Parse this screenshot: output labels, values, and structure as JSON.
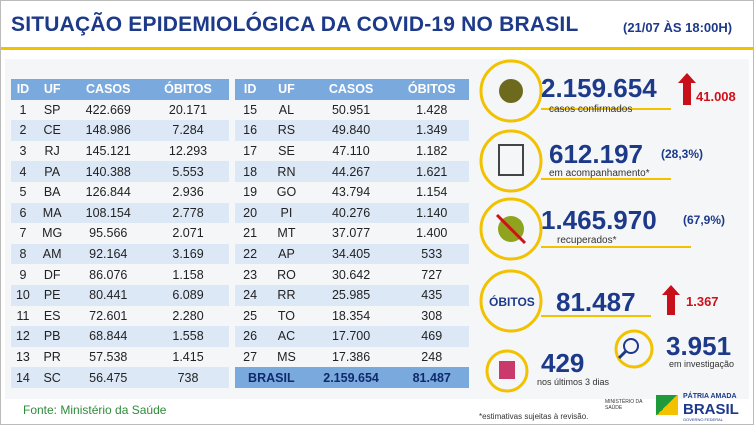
{
  "header": {
    "title": "SITUAÇÃO EPIDEMIOLÓGICA DA COVID-19 NO BRASIL",
    "date": "(21/07 ÀS 18:00H)"
  },
  "table_left": {
    "columns": [
      "ID",
      "UF",
      "CASOS",
      "ÓBITOS"
    ],
    "rows": [
      [
        "1",
        "SP",
        "422.669",
        "20.171"
      ],
      [
        "2",
        "CE",
        "148.986",
        "7.284"
      ],
      [
        "3",
        "RJ",
        "145.121",
        "12.293"
      ],
      [
        "4",
        "PA",
        "140.388",
        "5.553"
      ],
      [
        "5",
        "BA",
        "126.844",
        "2.936"
      ],
      [
        "6",
        "MA",
        "108.154",
        "2.778"
      ],
      [
        "7",
        "MG",
        "95.566",
        "2.071"
      ],
      [
        "8",
        "AM",
        "92.164",
        "3.169"
      ],
      [
        "9",
        "DF",
        "86.076",
        "1.158"
      ],
      [
        "10",
        "PE",
        "80.441",
        "6.089"
      ],
      [
        "11",
        "ES",
        "72.601",
        "2.280"
      ],
      [
        "12",
        "PB",
        "68.844",
        "1.558"
      ],
      [
        "13",
        "PR",
        "57.538",
        "1.415"
      ],
      [
        "14",
        "SC",
        "56.475",
        "738"
      ]
    ]
  },
  "table_right": {
    "columns": [
      "ID",
      "UF",
      "CASOS",
      "ÓBITOS"
    ],
    "rows": [
      [
        "15",
        "AL",
        "50.951",
        "1.428"
      ],
      [
        "16",
        "RS",
        "49.840",
        "1.349"
      ],
      [
        "17",
        "SE",
        "47.110",
        "1.182"
      ],
      [
        "18",
        "RN",
        "44.267",
        "1.621"
      ],
      [
        "19",
        "GO",
        "43.794",
        "1.154"
      ],
      [
        "20",
        "PI",
        "40.276",
        "1.140"
      ],
      [
        "21",
        "MT",
        "37.077",
        "1.400"
      ],
      [
        "22",
        "AP",
        "34.405",
        "533"
      ],
      [
        "23",
        "RO",
        "30.642",
        "727"
      ],
      [
        "24",
        "RR",
        "25.985",
        "435"
      ],
      [
        "25",
        "TO",
        "18.354",
        "308"
      ],
      [
        "26",
        "AC",
        "17.700",
        "469"
      ],
      [
        "27",
        "MS",
        "17.386",
        "248"
      ]
    ],
    "total": [
      "BRASIL",
      "2.159.654",
      "81.487"
    ]
  },
  "stats": {
    "confirmed": {
      "value": "2.159.654",
      "label": "casos confirmados",
      "new": "41.008"
    },
    "monitoring": {
      "value": "612.197",
      "percent": "(28,3%)",
      "label": "em acompanhamento*"
    },
    "recovered": {
      "value": "1.465.970",
      "percent": "(67,9%)",
      "label": "recuperados*"
    },
    "deaths": {
      "badge": "ÓBITOS",
      "value": "81.487",
      "new": "1.367"
    },
    "recent": {
      "value": "429",
      "label": "nos últimos 3 dias"
    },
    "investigation": {
      "value": "3.951",
      "label": "em investigação"
    }
  },
  "footer": {
    "source": "Fonte: Ministério da Saúde",
    "note": "*estimativas sujeitas à revisão.",
    "ministry": "MINISTÉRIO DA SAÚDE",
    "slogan": "PÁTRIA AMADA",
    "brand": "BRASIL",
    "government": "GOVERNO FEDERAL"
  }
}
